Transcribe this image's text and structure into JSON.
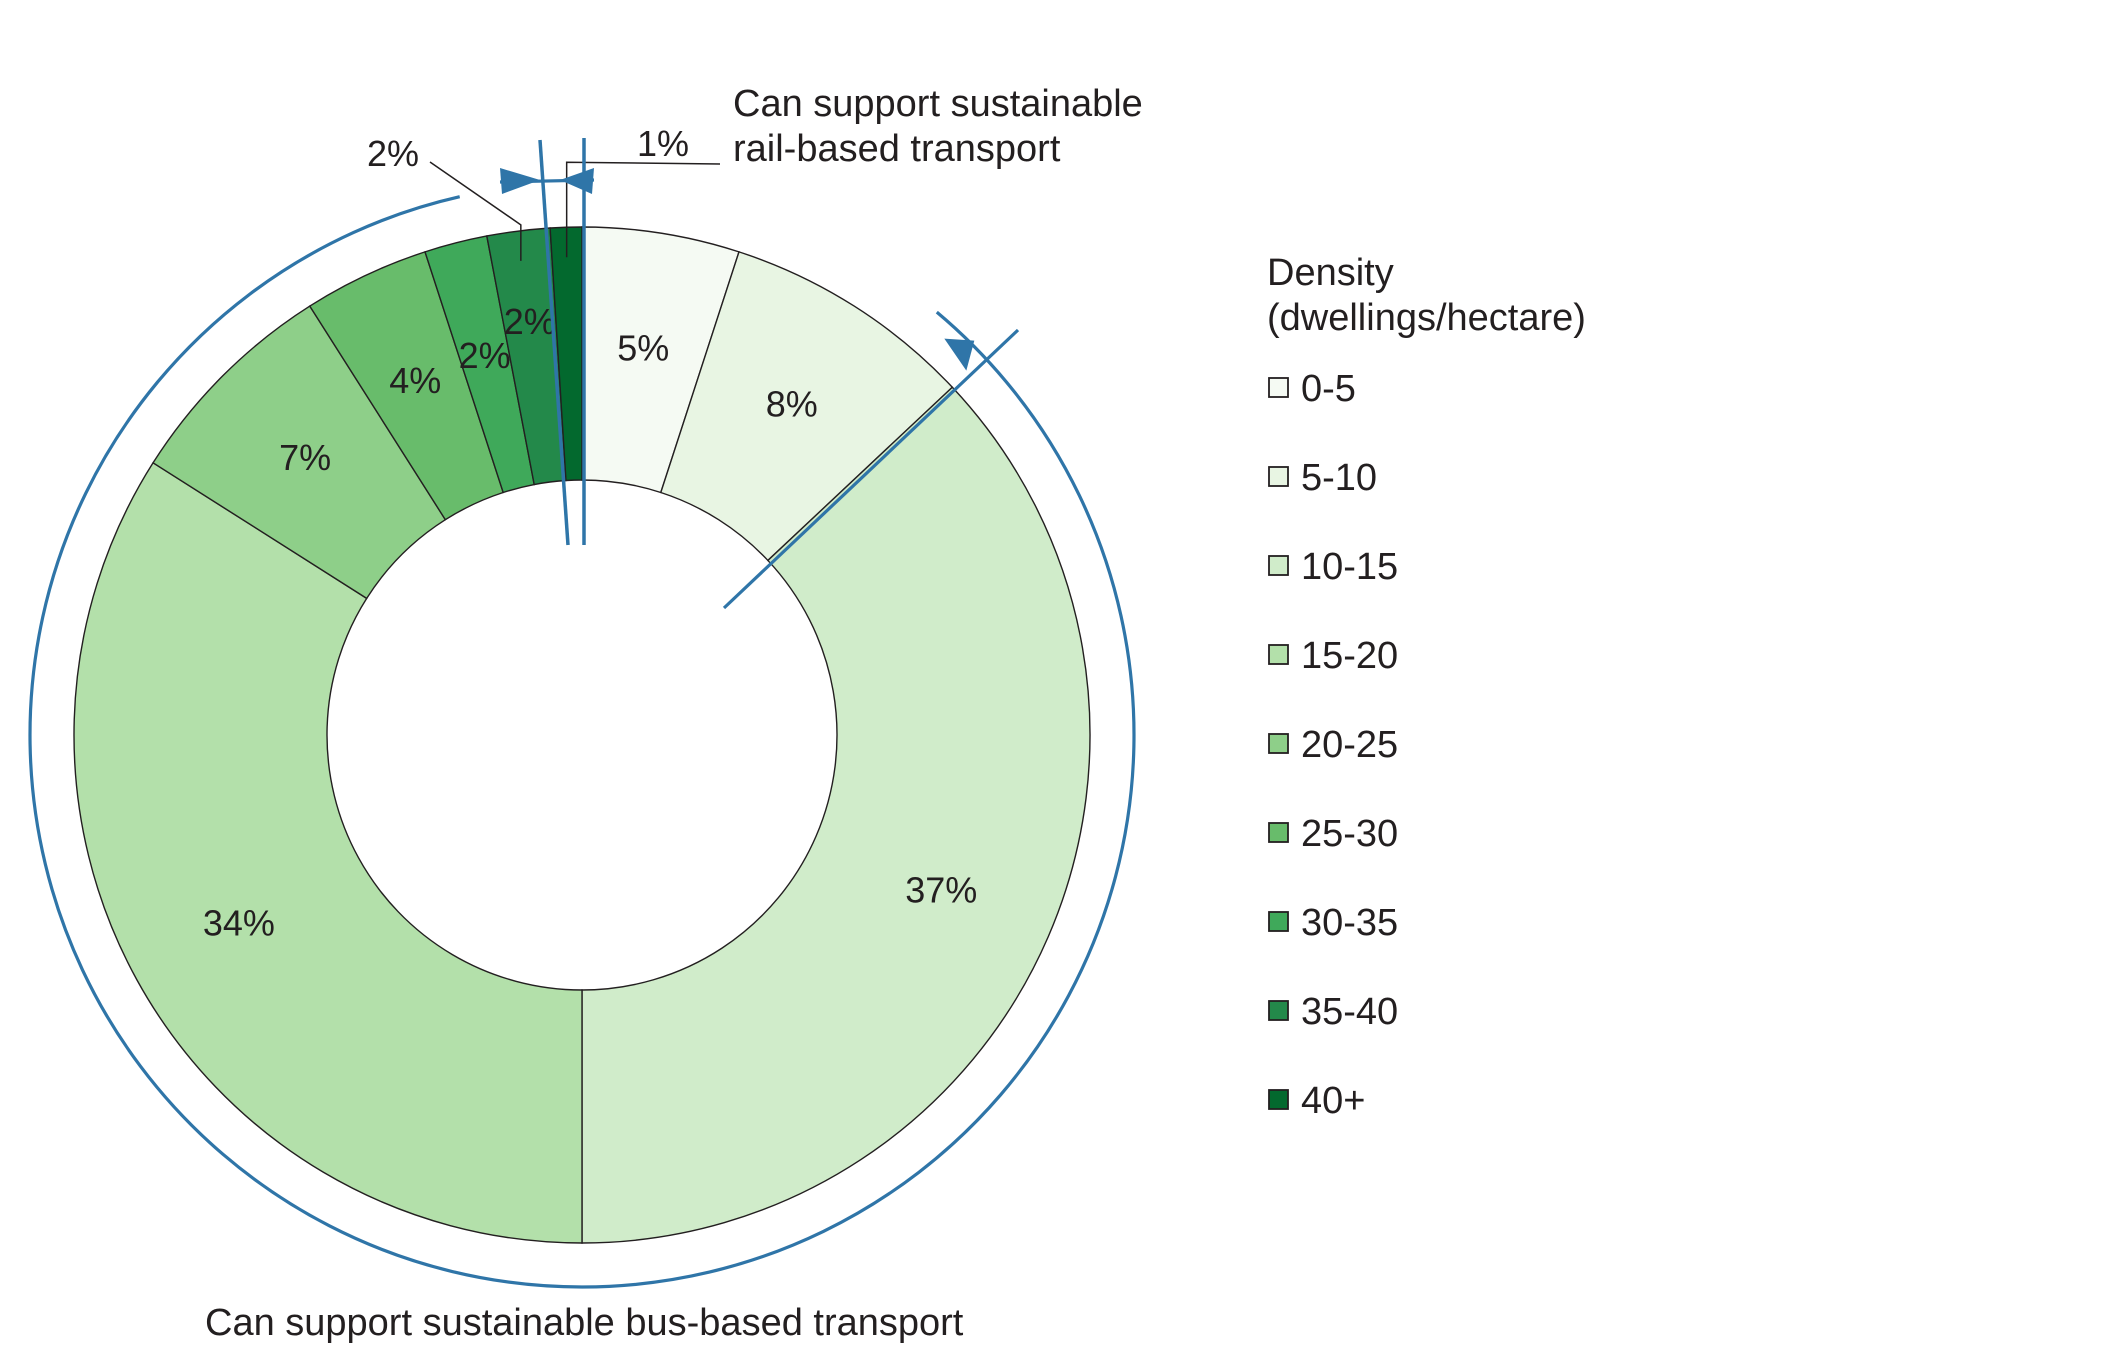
{
  "chart_data": {
    "type": "donut",
    "title": "",
    "legend": {
      "title_lines": [
        "Density",
        "(dwellings/hectare)"
      ],
      "placement": "right"
    },
    "categories": [
      "0-5",
      "5-10",
      "10-15",
      "15-20",
      "20-25",
      "25-30",
      "30-35",
      "35-40",
      "40+"
    ],
    "values": [
      5,
      8,
      37,
      34,
      7,
      4,
      2,
      2,
      1
    ],
    "labels": [
      "5%",
      "8%",
      "37%",
      "34%",
      "7%",
      "4%",
      "2%",
      "2%",
      "1%"
    ],
    "colors": [
      "#f5faf3",
      "#e8f5e3",
      "#d0ecca",
      "#b3e0aa",
      "#8ecf89",
      "#68bc6b",
      "#3fa95a",
      "#23894a",
      "#03692e"
    ],
    "accent_color": "#2f75a8",
    "annotations": {
      "rail": {
        "lines": [
          "Can support sustainable",
          "rail-based transport"
        ]
      },
      "bus": {
        "text": "Can support sustainable bus-based transport"
      }
    }
  }
}
